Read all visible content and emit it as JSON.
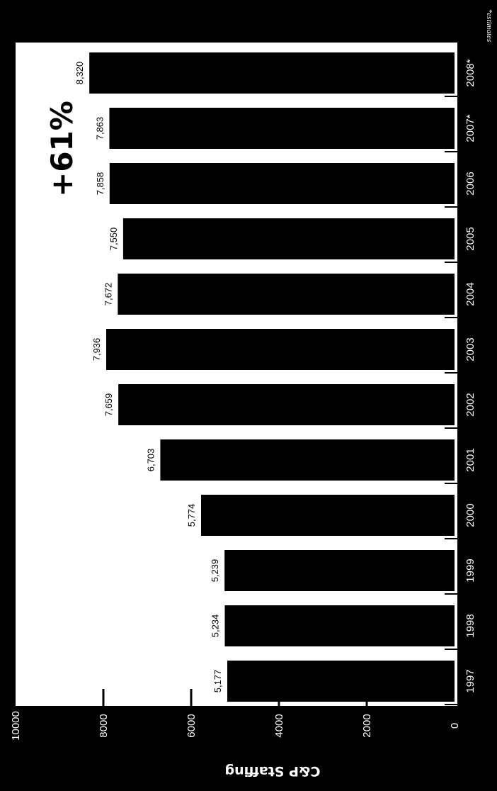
{
  "chart_data": {
    "type": "bar",
    "orientation": "rotated-90",
    "categories": [
      "1997",
      "1998",
      "1999",
      "2000",
      "2001",
      "2002",
      "2003",
      "2004",
      "2005",
      "2006",
      "2007*",
      "2008*"
    ],
    "values": [
      5177,
      5234,
      5239,
      5774,
      6703,
      7659,
      7936,
      7672,
      7550,
      7858,
      7863,
      8320
    ],
    "value_labels": [
      "5,177",
      "5,234",
      "5,239",
      "5,774",
      "6,703",
      "7,659",
      "7,936",
      "7,672",
      "7,550",
      "7,858",
      "7,863",
      "8,320"
    ],
    "ylabel": "C&P Staffing",
    "yticks": [
      "0",
      "2000",
      "4000",
      "6000",
      "8000",
      "10000"
    ],
    "ylim": [
      0,
      10000
    ],
    "annotation": "+61%",
    "footnote": "*estimates",
    "colors": {
      "background": "#000000",
      "plot": "#ffffff",
      "bar": "#000000"
    },
    "grid": false
  }
}
